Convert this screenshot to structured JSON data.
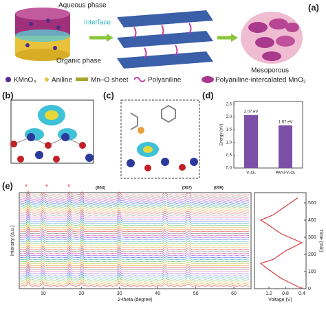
{
  "panel_labels": [
    "(a)",
    "(b)",
    "(c)",
    "(d)",
    "(e)"
  ],
  "panel_a": {
    "aqueous": "Aqueous phase",
    "interface": "Interface",
    "organic": "Organic phase",
    "mesoporous": "Mesoporous",
    "legend": [
      "KMnO₄",
      "Aniline",
      "Mn–O sheet",
      "Polyaniline",
      "Polyaniline-intercalated MnO₂"
    ]
  },
  "chart_data": [
    {
      "type": "bar",
      "ylabel": "Energy (eV)",
      "categories": [
        "V₂O₅",
        "PANI-V₂O₅"
      ],
      "values": [
        2.07,
        1.67
      ],
      "value_labels": [
        "2.07 eV",
        "1.67 eV"
      ],
      "color": "#7b4fa6",
      "ylim": [
        0,
        2.6
      ],
      "yticks": [
        {
          "value": 0,
          "label": "0.0"
        },
        0.5,
        {
          "value": 1,
          "label": "1.0"
        },
        1.5,
        {
          "value": 2,
          "label": "2.0"
        },
        2.5
      ]
    },
    {
      "type": "xrd",
      "xlabel": "2-theta (degree)",
      "ylabel": "Intensity (a.u.)",
      "xlim": [
        3.7,
        64.5
      ],
      "xticks": [
        10,
        20,
        30,
        40,
        50,
        60
      ],
      "peak_labels": [
        "(004)",
        "(007)",
        "(009)"
      ],
      "peak_x": [
        25,
        47.7,
        56
      ],
      "marker_label": "*",
      "marker_x": [
        5.5,
        10.9,
        16.7
      ]
    },
    {
      "type": "line",
      "xlabel": "Voltage (V)",
      "ylabel": "Time (min)",
      "x": [
        0.4,
        0.9,
        1.2,
        1.4,
        1.1,
        0.8,
        0.4,
        0.9,
        1.2,
        1.4,
        1.1,
        0.8,
        0.5
      ],
      "series": [
        {
          "color": "#d9383a",
          "values": [
            0,
            60,
            110,
            148,
            170,
            220,
            268,
            320,
            370,
            400,
            430,
            480,
            530
          ]
        }
      ],
      "xlim": [
        1.55,
        0.3
      ],
      "ylim": [
        0,
        560
      ],
      "xticks": [
        1.2,
        0.8,
        0.4
      ],
      "yticks": [
        0,
        100,
        200,
        300,
        400,
        500
      ]
    }
  ]
}
